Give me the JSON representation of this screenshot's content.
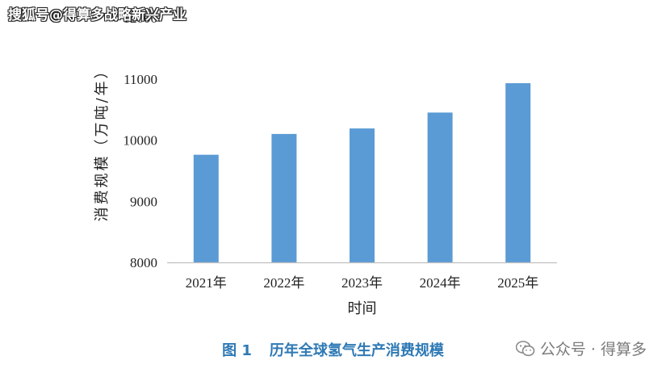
{
  "watermark": {
    "text": "搜狐号@得算多战略新兴产业"
  },
  "caption": {
    "number": "图 1",
    "title": "历年全球氢气生产消费规模"
  },
  "brand": {
    "text": "公众号 · 得算多",
    "icon": "wechat-icon"
  },
  "colors": {
    "bar": "#5b9bd5",
    "caption": "#2e79b5",
    "axis": "#bfbfbf"
  },
  "chart_data": {
    "type": "bar",
    "categories": [
      "2021年",
      "2022年",
      "2023年",
      "2024年",
      "2025年"
    ],
    "values": [
      9760,
      10100,
      10190,
      10450,
      10930
    ],
    "xlabel": "时间",
    "ylabel": "消费规模（万吨/年）",
    "ylim": [
      8000,
      12000
    ],
    "yticks": [
      "8000",
      "9000",
      "10000",
      "11000",
      "12000"
    ],
    "grid": false
  }
}
